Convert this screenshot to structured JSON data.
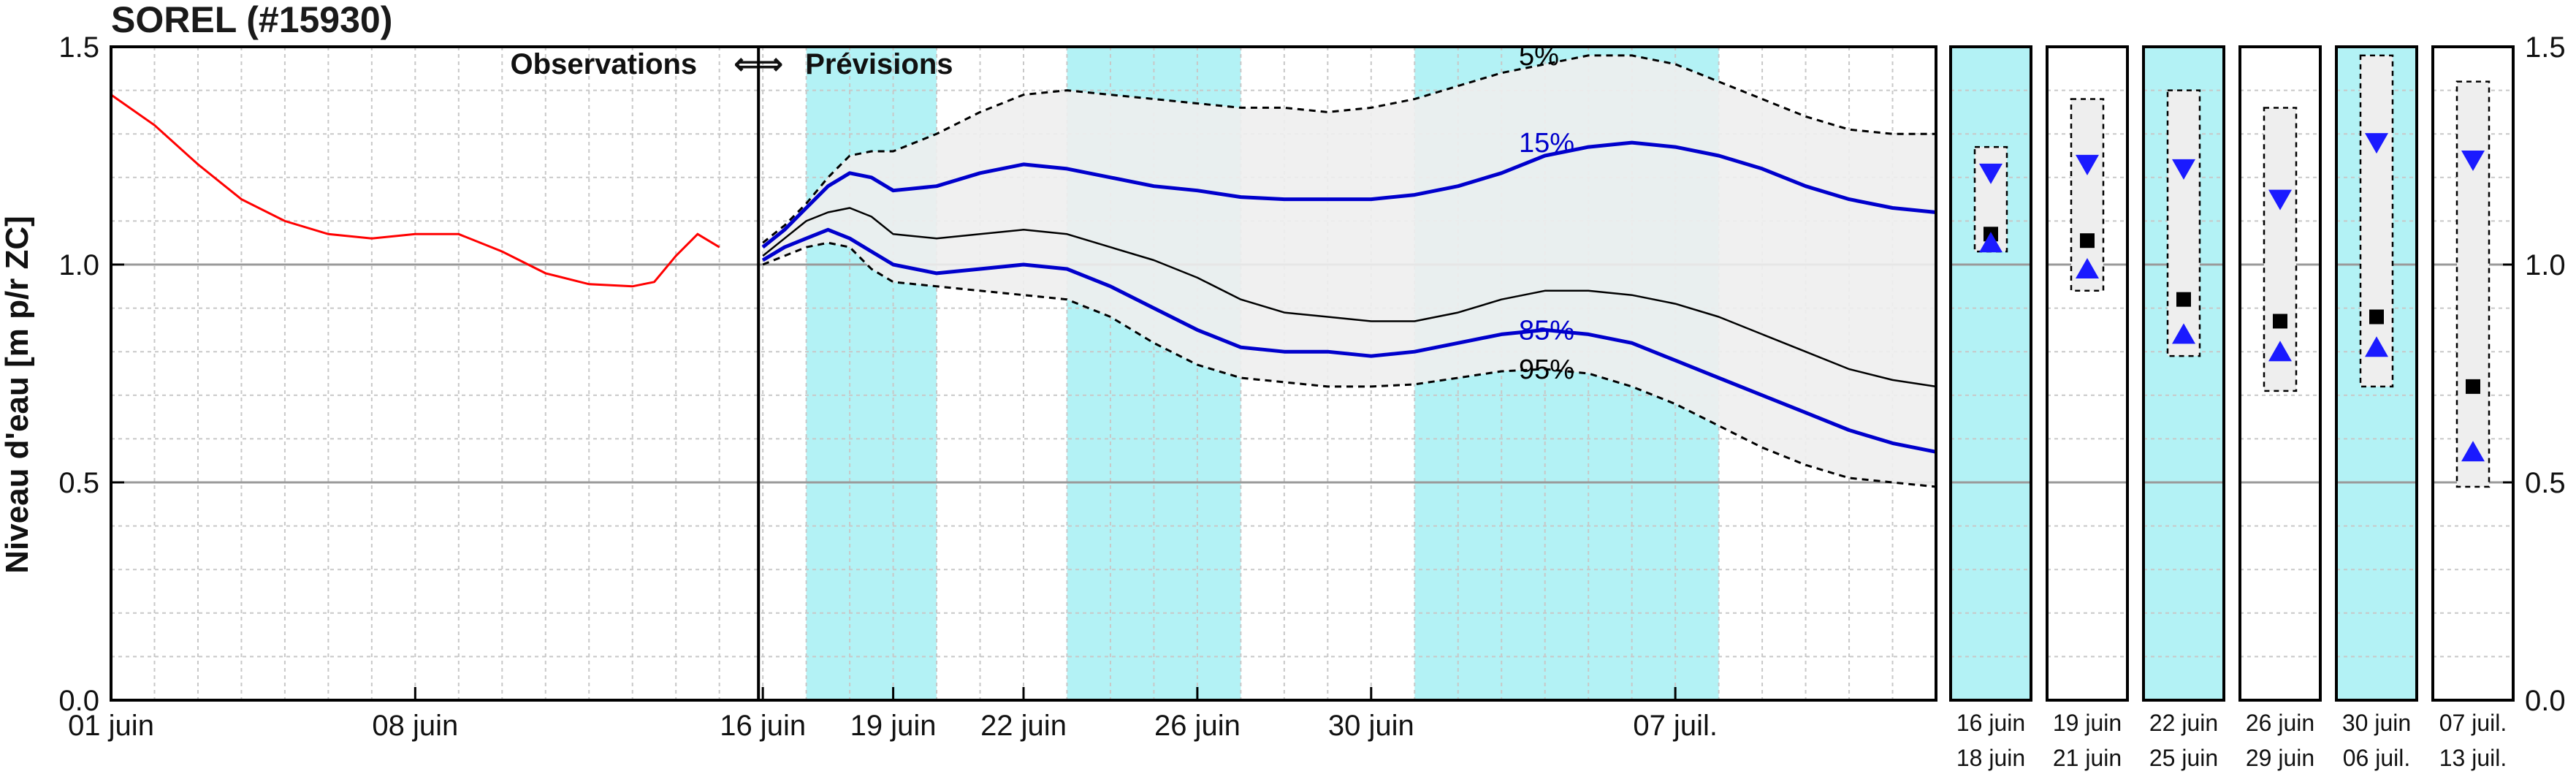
{
  "title": "SOREL (#15930)",
  "colors": {
    "observed": "#ff0000",
    "band15_85": "#0000cc",
    "median": "#000000",
    "envelope_fill": "#eeeeee",
    "weekend_shade": "#b3f2f5",
    "grid_major": "#9a9a9a",
    "grid_minor": "#c8c8c8",
    "triangle": "#1a1aff",
    "square": "#000000"
  },
  "chart_data": {
    "type": "line",
    "title": "SOREL (#15930)",
    "ylabel": "Niveau d'eau [m p/r ZC]",
    "ylim": [
      0.0,
      1.5
    ],
    "yticks": [
      "0.0",
      "0.5",
      "1.0",
      "1.5"
    ],
    "xlim_days": [
      "01 juin",
      "13 juil."
    ],
    "grid": true,
    "section_labels": {
      "left": "Observations",
      "arrows": "⇐⇒",
      "right": "Prévisions"
    },
    "forecast_start": "15 juin",
    "xticks": [
      {
        "label": "01 juin",
        "day": 0
      },
      {
        "label": "08 juin",
        "day": 7
      },
      {
        "label": "16 juin",
        "day": 15
      },
      {
        "label": "19 juin",
        "day": 18
      },
      {
        "label": "22 juin",
        "day": 21
      },
      {
        "label": "26 juin",
        "day": 25
      },
      {
        "label": "30 juin",
        "day": 29
      },
      {
        "label": "07 juil.",
        "day": 36
      }
    ],
    "shaded_periods_days": [
      [
        16,
        19
      ],
      [
        22,
        26
      ],
      [
        30,
        37
      ]
    ],
    "observed": {
      "name": "Observations",
      "x_days": [
        0,
        1,
        2,
        3,
        4,
        5,
        6,
        7,
        8,
        9,
        10,
        11,
        12,
        12.5,
        13.0,
        13.5,
        14.0
      ],
      "y": [
        1.39,
        1.32,
        1.23,
        1.15,
        1.1,
        1.07,
        1.06,
        1.07,
        1.07,
        1.03,
        0.98,
        0.955,
        0.95,
        0.96,
        1.02,
        1.07,
        1.04
      ]
    },
    "forecast_x_days": [
      15,
      15.5,
      16,
      16.5,
      17,
      17.5,
      18,
      19,
      20,
      21,
      22,
      23,
      24,
      25,
      26,
      27,
      28,
      29,
      30,
      31,
      32,
      33,
      34,
      35,
      36,
      37,
      38,
      39,
      40,
      41,
      42
    ],
    "series": [
      {
        "name": "5%",
        "values": [
          1.05,
          1.09,
          1.14,
          1.2,
          1.25,
          1.26,
          1.26,
          1.3,
          1.35,
          1.39,
          1.4,
          1.39,
          1.38,
          1.37,
          1.36,
          1.36,
          1.35,
          1.36,
          1.38,
          1.41,
          1.44,
          1.46,
          1.48,
          1.48,
          1.46,
          1.42,
          1.38,
          1.34,
          1.31,
          1.3,
          1.3
        ]
      },
      {
        "name": "15%",
        "values": [
          1.04,
          1.08,
          1.13,
          1.18,
          1.21,
          1.2,
          1.17,
          1.18,
          1.21,
          1.23,
          1.22,
          1.2,
          1.18,
          1.17,
          1.155,
          1.15,
          1.15,
          1.15,
          1.16,
          1.18,
          1.21,
          1.25,
          1.27,
          1.28,
          1.27,
          1.25,
          1.22,
          1.18,
          1.15,
          1.13,
          1.12
        ]
      },
      {
        "name": "médiane",
        "values": [
          1.02,
          1.06,
          1.1,
          1.12,
          1.13,
          1.11,
          1.07,
          1.06,
          1.07,
          1.08,
          1.07,
          1.04,
          1.01,
          0.97,
          0.92,
          0.89,
          0.88,
          0.87,
          0.87,
          0.89,
          0.92,
          0.94,
          0.94,
          0.93,
          0.91,
          0.88,
          0.84,
          0.8,
          0.76,
          0.735,
          0.72
        ]
      },
      {
        "name": "85%",
        "values": [
          1.01,
          1.04,
          1.06,
          1.08,
          1.06,
          1.03,
          1.0,
          0.98,
          0.99,
          1.0,
          0.99,
          0.95,
          0.9,
          0.85,
          0.81,
          0.8,
          0.8,
          0.79,
          0.8,
          0.82,
          0.84,
          0.85,
          0.84,
          0.82,
          0.78,
          0.74,
          0.7,
          0.66,
          0.62,
          0.59,
          0.57
        ]
      },
      {
        "name": "95%",
        "values": [
          1.0,
          1.02,
          1.04,
          1.05,
          1.04,
          0.99,
          0.96,
          0.95,
          0.94,
          0.93,
          0.92,
          0.88,
          0.82,
          0.77,
          0.74,
          0.73,
          0.72,
          0.72,
          0.725,
          0.74,
          0.755,
          0.76,
          0.75,
          0.72,
          0.68,
          0.63,
          0.58,
          0.54,
          0.51,
          0.5,
          0.49
        ]
      }
    ],
    "percentile_labels": [
      {
        "text": "5%",
        "day": 32.4,
        "y": 1.48,
        "color": "#000000"
      },
      {
        "text": "15%",
        "day": 32.4,
        "y": 1.28,
        "color": "#0000cc"
      },
      {
        "text": "85%",
        "day": 32.4,
        "y": 0.85,
        "color": "#0000cc"
      },
      {
        "text": "95%",
        "day": 32.4,
        "y": 0.76,
        "color": "#000000"
      }
    ],
    "ylabel_right_ticks": [
      "0.0",
      "0.5",
      "1.0",
      "1.5"
    ],
    "panels": [
      {
        "label_top": "16  juin",
        "label_bottom": "18  juin",
        "shaded": true,
        "box_top": 1.27,
        "box_bottom": 1.03,
        "tri_down": 1.21,
        "square": 1.07,
        "tri_up": 1.05
      },
      {
        "label_top": "19  juin",
        "label_bottom": "21  juin",
        "shaded": false,
        "box_top": 1.38,
        "box_bottom": 0.94,
        "tri_down": 1.23,
        "square": 1.055,
        "tri_up": 0.99
      },
      {
        "label_top": "22  juin",
        "label_bottom": "25  juin",
        "shaded": true,
        "box_top": 1.4,
        "box_bottom": 0.79,
        "tri_down": 1.22,
        "square": 0.92,
        "tri_up": 0.84
      },
      {
        "label_top": "26  juin",
        "label_bottom": "29  juin",
        "shaded": false,
        "box_top": 1.36,
        "box_bottom": 0.71,
        "tri_down": 1.15,
        "square": 0.87,
        "tri_up": 0.8
      },
      {
        "label_top": "30  juin",
        "label_bottom": "06  juil.",
        "shaded": true,
        "box_top": 1.48,
        "box_bottom": 0.72,
        "tri_down": 1.28,
        "square": 0.88,
        "tri_up": 0.81
      },
      {
        "label_top": "07  juil.",
        "label_bottom": "13  juil.",
        "shaded": false,
        "box_top": 1.42,
        "box_bottom": 0.49,
        "tri_down": 1.24,
        "square": 0.72,
        "tri_up": 0.57
      }
    ]
  }
}
